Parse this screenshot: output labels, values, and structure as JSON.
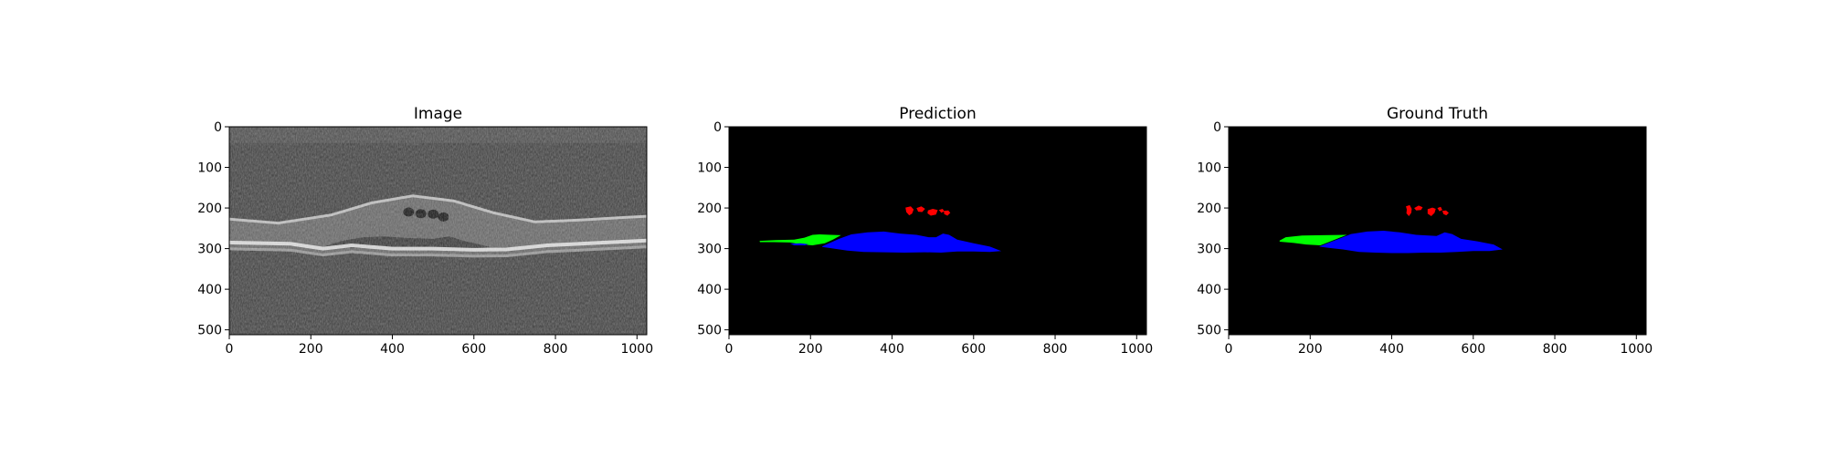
{
  "figure": {
    "background": "#ffffff"
  },
  "chart_data": [
    {
      "type": "heatmap",
      "title": "Image",
      "xlabel": "",
      "ylabel": "",
      "xlim": [
        0,
        1024
      ],
      "ylim": [
        512,
        0
      ],
      "xticks": [
        0,
        200,
        400,
        600,
        800,
        1000
      ],
      "yticks": [
        0,
        100,
        200,
        300,
        400,
        500
      ],
      "colormap": "gray",
      "content": "OCT retinal B-scan",
      "retina_band_top": [
        [
          0,
          225
        ],
        [
          120,
          235
        ],
        [
          250,
          215
        ],
        [
          350,
          185
        ],
        [
          450,
          168
        ],
        [
          550,
          180
        ],
        [
          650,
          210
        ],
        [
          750,
          232
        ],
        [
          850,
          228
        ],
        [
          950,
          222
        ],
        [
          1024,
          218
        ]
      ],
      "rpe_band": [
        [
          0,
          285
        ],
        [
          150,
          288
        ],
        [
          230,
          300
        ],
        [
          300,
          292
        ],
        [
          400,
          300
        ],
        [
          500,
          300
        ],
        [
          600,
          303
        ],
        [
          680,
          302
        ],
        [
          780,
          292
        ],
        [
          900,
          286
        ],
        [
          1024,
          280
        ]
      ],
      "cysts": [
        [
          440,
          210
        ],
        [
          470,
          214
        ],
        [
          500,
          215
        ],
        [
          525,
          222
        ]
      ]
    },
    {
      "type": "heatmap",
      "title": "Prediction",
      "xlabel": "",
      "ylabel": "",
      "xlim": [
        0,
        1024
      ],
      "ylim": [
        512,
        0
      ],
      "xticks": [
        0,
        200,
        400,
        600,
        800,
        1000
      ],
      "yticks": [
        0,
        100,
        200,
        300,
        400,
        500
      ],
      "background": "#000000",
      "regions": [
        {
          "color": "#00ff00",
          "polygons": [
            [
              [
                75,
                281
              ],
              [
                115,
                279
              ],
              [
                160,
                278
              ],
              [
                185,
                273
              ],
              [
                205,
                266
              ],
              [
                222,
                265
              ],
              [
                250,
                266
              ],
              [
                275,
                267
              ],
              [
                255,
                278
              ],
              [
                235,
                287
              ],
              [
                205,
                292
              ],
              [
                180,
                290
              ],
              [
                150,
                285
              ],
              [
                110,
                284
              ],
              [
                76,
                284
              ]
            ]
          ]
        },
        {
          "color": "#0000ff",
          "polygons": [
            [
              [
                230,
                294
              ],
              [
                270,
                276
              ],
              [
                300,
                265
              ],
              [
                340,
                260
              ],
              [
                380,
                258
              ],
              [
                420,
                263
              ],
              [
                460,
                266
              ],
              [
                490,
                272
              ],
              [
                508,
                272
              ],
              [
                525,
                263
              ],
              [
                540,
                266
              ],
              [
                560,
                278
              ],
              [
                600,
                287
              ],
              [
                640,
                295
              ],
              [
                668,
                306
              ],
              [
                640,
                308
              ],
              [
                600,
                307
              ],
              [
                560,
                307
              ],
              [
                520,
                310
              ],
              [
                480,
                309
              ],
              [
                430,
                310
              ],
              [
                380,
                309
              ],
              [
                330,
                308
              ],
              [
                290,
                305
              ],
              [
                250,
                299
              ],
              [
                228,
                296
              ]
            ],
            [
              [
                150,
                288
              ],
              [
                175,
                287
              ],
              [
                195,
                289
              ],
              [
                186,
                292
              ],
              [
                160,
                292
              ]
            ]
          ]
        },
        {
          "color": "#ff0000",
          "polygons": [
            [
              [
                433,
                199
              ],
              [
                446,
                196
              ],
              [
                453,
                204
              ],
              [
                449,
                214
              ],
              [
                442,
                218
              ],
              [
                435,
                210
              ]
            ],
            [
              [
                460,
                200
              ],
              [
                472,
                196
              ],
              [
                481,
                202
              ],
              [
                474,
                210
              ],
              [
                464,
                209
              ]
            ],
            [
              [
                488,
                206
              ],
              [
                500,
                202
              ],
              [
                512,
                205
              ],
              [
                508,
                216
              ],
              [
                495,
                219
              ],
              [
                487,
                213
              ]
            ],
            [
              [
                515,
                205
              ],
              [
                524,
                202
              ],
              [
                528,
                208
              ],
              [
                521,
                212
              ]
            ],
            [
              [
                527,
                207
              ],
              [
                538,
                206
              ],
              [
                543,
                212
              ],
              [
                536,
                219
              ],
              [
                528,
                215
              ]
            ]
          ]
        }
      ]
    },
    {
      "type": "heatmap",
      "title": "Ground Truth",
      "xlabel": "",
      "ylabel": "",
      "xlim": [
        0,
        1024
      ],
      "ylim": [
        512,
        0
      ],
      "xticks": [
        0,
        200,
        400,
        600,
        800,
        1000
      ],
      "yticks": [
        0,
        100,
        200,
        300,
        400,
        500
      ],
      "background": "#000000",
      "regions": [
        {
          "color": "#00ff00",
          "polygons": [
            [
              [
                125,
                280
              ],
              [
                140,
                272
              ],
              [
                180,
                268
              ],
              [
                230,
                267
              ],
              [
                290,
                266
              ],
              [
                255,
                280
              ],
              [
                225,
                292
              ],
              [
                190,
                290
              ],
              [
                160,
                286
              ],
              [
                125,
                283
              ]
            ]
          ]
        },
        {
          "color": "#0000ff",
          "polygons": [
            [
              [
                222,
                295
              ],
              [
                260,
                280
              ],
              [
                300,
                264
              ],
              [
                340,
                258
              ],
              [
                380,
                256
              ],
              [
                420,
                260
              ],
              [
                460,
                266
              ],
              [
                490,
                268
              ],
              [
                510,
                269
              ],
              [
                530,
                260
              ],
              [
                548,
                264
              ],
              [
                570,
                276
              ],
              [
                610,
                282
              ],
              [
                650,
                290
              ],
              [
                672,
                302
              ],
              [
                640,
                306
              ],
              [
                600,
                306
              ],
              [
                560,
                308
              ],
              [
                520,
                310
              ],
              [
                480,
                310
              ],
              [
                440,
                311
              ],
              [
                400,
                311
              ],
              [
                360,
                310
              ],
              [
                320,
                308
              ],
              [
                280,
                302
              ],
              [
                245,
                298
              ]
            ]
          ]
        },
        {
          "color": "#ff0000",
          "polygons": [
            [
              [
                435,
                196
              ],
              [
                444,
                193
              ],
              [
                449,
                202
              ],
              [
                448,
                212
              ],
              [
                442,
                220
              ],
              [
                436,
                213
              ],
              [
                437,
                204
              ]
            ],
            [
              [
                455,
                200
              ],
              [
                466,
                194
              ],
              [
                476,
                198
              ],
              [
                472,
                205
              ],
              [
                460,
                206
              ]
            ],
            [
              [
                488,
                203
              ],
              [
                500,
                199
              ],
              [
                508,
                202
              ],
              [
                505,
                212
              ],
              [
                497,
                220
              ],
              [
                488,
                214
              ]
            ],
            [
              [
                512,
                200
              ],
              [
                520,
                197
              ],
              [
                524,
                205
              ],
              [
                517,
                208
              ]
            ],
            [
              [
                524,
                207
              ],
              [
                533,
                206
              ],
              [
                540,
                212
              ],
              [
                534,
                218
              ],
              [
                527,
                215
              ]
            ]
          ]
        }
      ]
    }
  ]
}
